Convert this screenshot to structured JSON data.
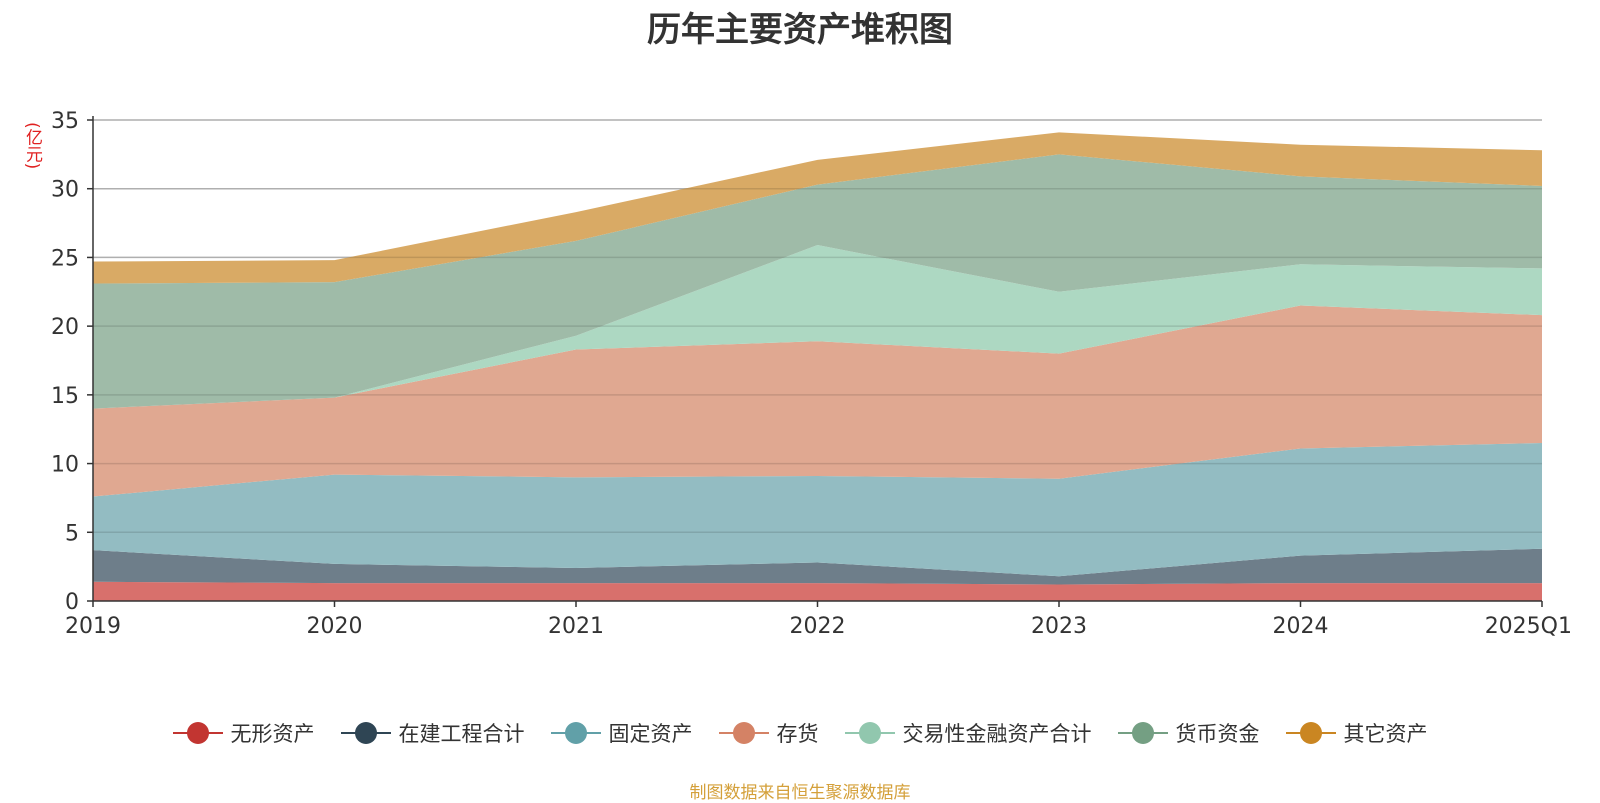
{
  "chart_data": {
    "type": "area",
    "stacked": true,
    "title": "历年主要资产堆积图",
    "ylabel": "(亿元)",
    "xlabel": "",
    "categories": [
      "2019",
      "2020",
      "2021",
      "2022",
      "2023",
      "2024",
      "2025Q1"
    ],
    "ylim": [
      0,
      35
    ],
    "yticks": [
      0,
      5,
      10,
      15,
      20,
      25,
      30,
      35
    ],
    "grid": true,
    "legend_position": "bottom",
    "series": [
      {
        "name": "无形资产",
        "color": "#c23531",
        "fill": "#d8706c",
        "values": [
          1.4,
          1.3,
          1.3,
          1.3,
          1.2,
          1.3,
          1.3
        ]
      },
      {
        "name": "在建工程合计",
        "color": "#2f4554",
        "fill": "#6e7e8a",
        "values": [
          2.3,
          1.4,
          1.1,
          1.5,
          0.6,
          2.0,
          2.5
        ]
      },
      {
        "name": "固定资产",
        "color": "#61a0a8",
        "fill": "#93bcc2",
        "values": [
          3.9,
          6.5,
          6.6,
          6.3,
          7.1,
          7.8,
          7.7
        ]
      },
      {
        "name": "存货",
        "color": "#d48265",
        "fill": "#e0a891",
        "values": [
          6.4,
          5.6,
          9.3,
          9.8,
          9.1,
          10.4,
          9.3
        ]
      },
      {
        "name": "交易性金融资产合计",
        "color": "#91c7ae",
        "fill": "#add8c2",
        "values": [
          0.0,
          0.0,
          1.0,
          7.0,
          4.5,
          3.0,
          3.4
        ]
      },
      {
        "name": "货币资金",
        "color": "#749f83",
        "fill": "#9fbba8",
        "values": [
          9.1,
          8.4,
          6.9,
          4.4,
          10.0,
          6.4,
          6.0
        ]
      },
      {
        "name": "其它资产",
        "color": "#ca8622",
        "fill": "#d9aa65",
        "values": [
          1.6,
          1.6,
          2.1,
          1.8,
          1.6,
          2.3,
          2.6
        ]
      }
    ]
  },
  "source_note": "制图数据来自恒生聚源数据库"
}
